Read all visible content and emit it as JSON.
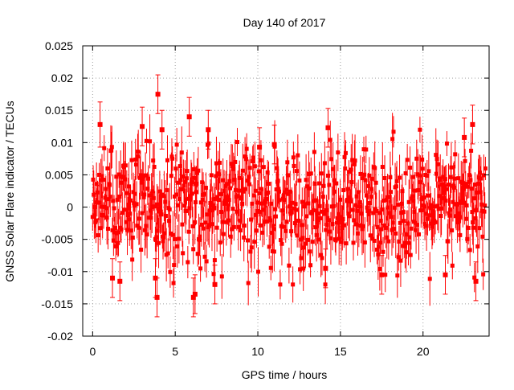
{
  "chart_data": {
    "type": "scatter",
    "title": "Day 140 of 2017",
    "xlabel": "GPS time / hours",
    "ylabel": "GNSS Solar Flare indicator / TECUs",
    "xlim": [
      -0.6,
      24
    ],
    "ylim": [
      -0.02,
      0.025
    ],
    "x_ticks": [
      0,
      5,
      10,
      15,
      20
    ],
    "x_tick_labels": [
      "0",
      "5",
      "10",
      "15",
      "20"
    ],
    "y_ticks": [
      -0.02,
      -0.015,
      -0.01,
      -0.005,
      0,
      0.005,
      0.01,
      0.015,
      0.02,
      0.025
    ],
    "y_tick_labels": [
      "-0.02",
      "-0.015",
      "-0.01",
      "-0.005",
      "0",
      "0.005",
      "0.01",
      "0.015",
      "0.02",
      "0.025"
    ],
    "grid": true,
    "grid_style": "dotted",
    "marker": "square",
    "error_bars": true,
    "series_color": "#ff0000",
    "x_range_of_data": [
      0,
      23.8
    ],
    "x_step_hours": 0.0333,
    "points": [
      {
        "x": 0.45,
        "y": 0.0128,
        "err": 0.0035
      },
      {
        "x": 1.2,
        "y": -0.011,
        "err": 0.003
      },
      {
        "x": 1.65,
        "y": -0.0115,
        "err": 0.003
      },
      {
        "x": 3.0,
        "y": 0.0125,
        "err": 0.003
      },
      {
        "x": 3.95,
        "y": 0.0175,
        "err": 0.003
      },
      {
        "x": 3.9,
        "y": -0.014,
        "err": 0.003
      },
      {
        "x": 3.8,
        "y": -0.011,
        "err": 0.003
      },
      {
        "x": 4.2,
        "y": 0.012,
        "err": 0.003
      },
      {
        "x": 5.85,
        "y": 0.014,
        "err": 0.003
      },
      {
        "x": 6.1,
        "y": -0.014,
        "err": 0.003
      },
      {
        "x": 6.2,
        "y": -0.0135,
        "err": 0.003
      },
      {
        "x": 7.0,
        "y": 0.012,
        "err": 0.003
      },
      {
        "x": 7.4,
        "y": -0.012,
        "err": 0.003
      },
      {
        "x": 10.1,
        "y": 0.0093,
        "err": 0.003
      },
      {
        "x": 11.0,
        "y": 0.0097,
        "err": 0.003
      },
      {
        "x": 14.25,
        "y": 0.0123,
        "err": 0.003
      },
      {
        "x": 14.1,
        "y": -0.0095,
        "err": 0.003
      },
      {
        "x": 17.5,
        "y": -0.0105,
        "err": 0.003
      },
      {
        "x": 21.35,
        "y": -0.0105,
        "err": 0.003
      },
      {
        "x": 22.5,
        "y": 0.0108,
        "err": 0.003
      },
      {
        "x": 23.0,
        "y": 0.0128,
        "err": 0.003
      },
      {
        "x": 23.2,
        "y": -0.0115,
        "err": 0.003
      }
    ],
    "typical_spread_y": 0.0045,
    "typical_error": 0.003
  }
}
